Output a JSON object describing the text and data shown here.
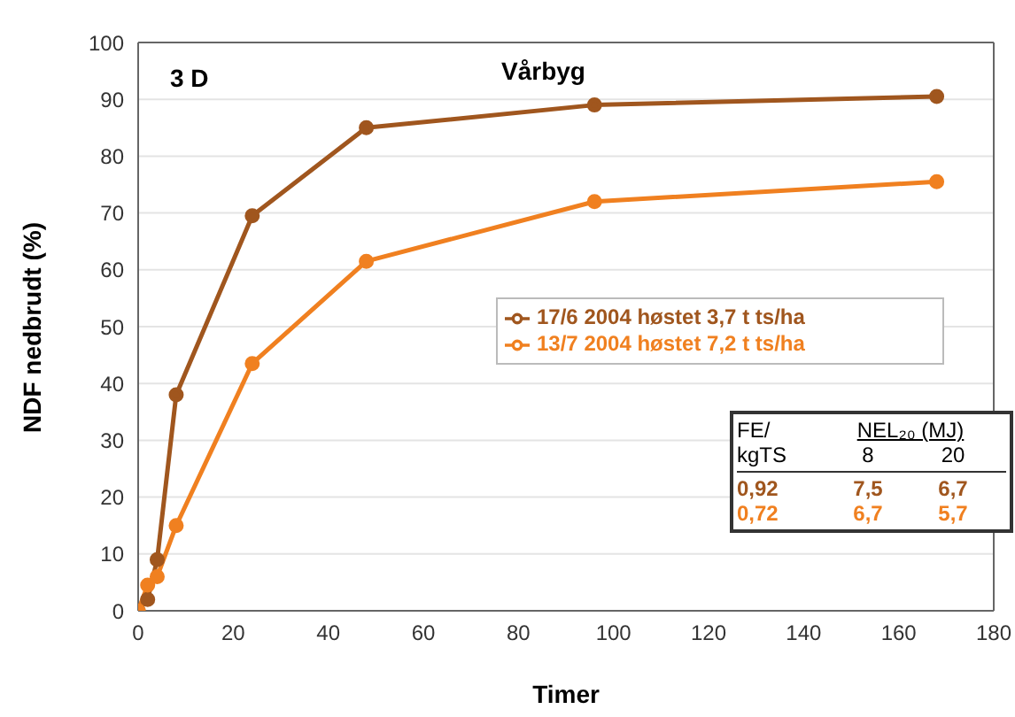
{
  "chart_data": {
    "type": "line",
    "title": "Vårbyg",
    "xlabel": "Timer",
    "ylabel": "NDF nedbrudt (%)",
    "x": [
      0,
      2,
      4,
      8,
      24,
      48,
      96,
      168
    ],
    "series": [
      {
        "name": "17/6 2004 høstet 3,7 t ts/ha",
        "color": "#a0561e",
        "values": [
          0,
          2,
          9,
          38,
          69.5,
          85,
          89,
          90.5
        ]
      },
      {
        "name": "13/7 2004 høstet 7,2 t ts/ha",
        "color": "#f08020",
        "values": [
          0,
          4.5,
          6,
          15,
          43.5,
          61.5,
          72,
          75.5
        ]
      }
    ],
    "xlim": [
      0,
      180
    ],
    "xticks": [
      0,
      20,
      40,
      60,
      80,
      100,
      120,
      140,
      160,
      180
    ],
    "ylim": [
      0,
      100
    ],
    "yticks": [
      0,
      10,
      20,
      30,
      40,
      50,
      60,
      70,
      80,
      90,
      100
    ],
    "grid": "y",
    "legend": "right",
    "marker": "circle",
    "line_style": "solid",
    "annotations": [
      "3 D",
      "FE/",
      "NEL₂₀ (MJ)",
      "kgTS",
      "8",
      "20",
      "0,92",
      "7,5",
      "6,7",
      "0,72",
      "6,7",
      "5,7"
    ]
  }
}
